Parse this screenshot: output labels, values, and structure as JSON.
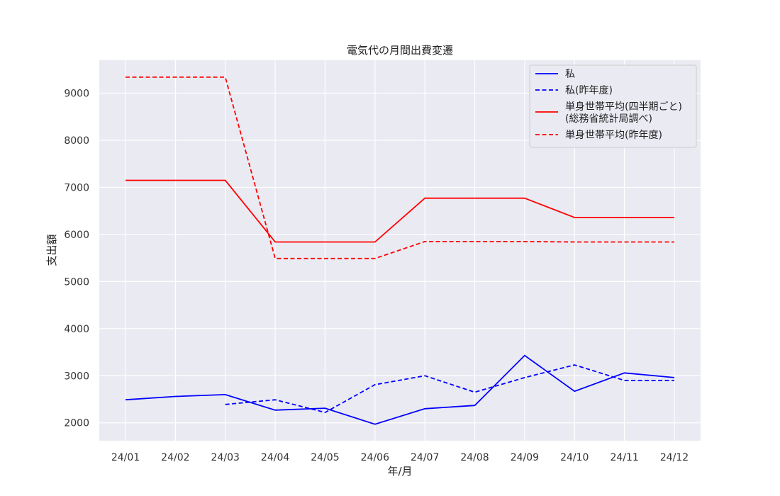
{
  "chart_data": {
    "type": "line",
    "title": "電気代の月間出費変遷",
    "xlabel": "年/月",
    "ylabel": "支出額",
    "categories": [
      "24/01",
      "24/02",
      "24/03",
      "24/04",
      "24/05",
      "24/06",
      "24/07",
      "24/08",
      "24/09",
      "24/10",
      "24/11",
      "24/12"
    ],
    "ylim": [
      1620,
      9700
    ],
    "yticks": [
      2000,
      3000,
      4000,
      5000,
      6000,
      7000,
      8000,
      9000
    ],
    "grid": true,
    "legend_position": "top-right",
    "series": [
      {
        "name": "私",
        "color": "#0000ff",
        "dash": false,
        "values": [
          2490,
          2560,
          2600,
          2270,
          2310,
          1970,
          2300,
          2370,
          3430,
          2670,
          3060,
          2960
        ]
      },
      {
        "name": "私(昨年度)",
        "color": "#0000ff",
        "dash": true,
        "values": [
          null,
          null,
          2390,
          2490,
          2220,
          2810,
          3000,
          2650,
          2960,
          3230,
          2900,
          2900
        ]
      },
      {
        "name": "単身世帯平均(四半期ごと)\n(総務省統計局調べ)",
        "color": "#ff0000",
        "dash": false,
        "values": [
          7150,
          7150,
          7150,
          5840,
          5840,
          5840,
          6770,
          6770,
          6770,
          6360,
          6360,
          6360
        ]
      },
      {
        "name": "単身世帯平均(昨年度)",
        "color": "#ff0000",
        "dash": true,
        "values": [
          9340,
          9340,
          9340,
          5490,
          5490,
          5490,
          5850,
          5850,
          5850,
          5840,
          5840,
          5840
        ]
      }
    ]
  }
}
